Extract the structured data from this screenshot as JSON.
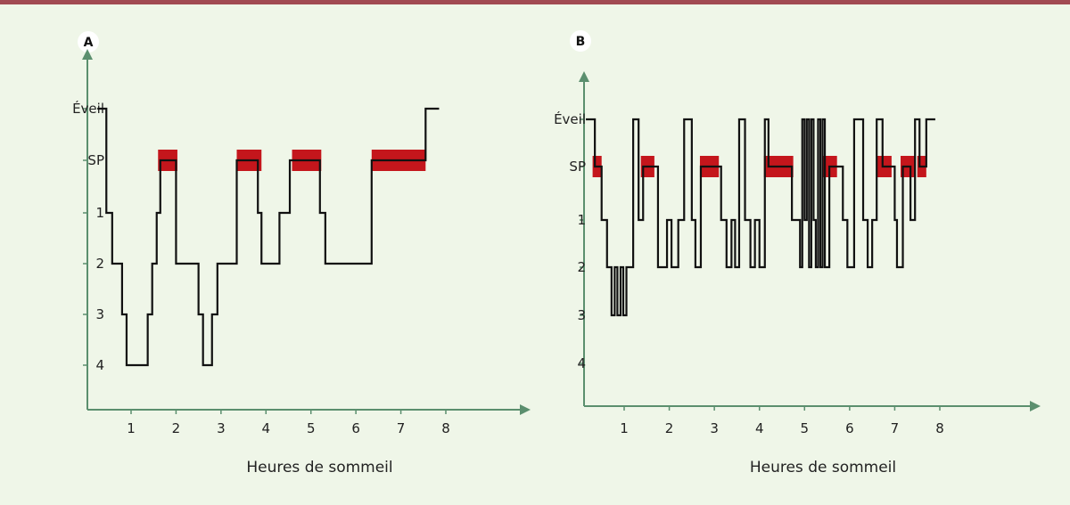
{
  "colors": {
    "background": "#eff6e8",
    "top_rule": "#a14a52",
    "axis": "#5b8f6e",
    "hypnogram": "#111111",
    "rem_bar": "#c4161c"
  },
  "chart_data": [
    {
      "type": "line",
      "panel": "A",
      "xlabel": "Heures de sommeil",
      "ylabel": "",
      "x_ticks": [
        "1",
        "2",
        "3",
        "4",
        "5",
        "6",
        "7",
        "8"
      ],
      "y_ticks": [
        "Éveil",
        "SP",
        "1",
        "2",
        "3",
        "4"
      ],
      "xlim": [
        0,
        10.4
      ],
      "grid": false,
      "stage_steps": [
        {
          "t": 0.25,
          "stage": "Éveil"
        },
        {
          "t": 0.45,
          "stage": "1"
        },
        {
          "t": 0.58,
          "stage": "2"
        },
        {
          "t": 0.8,
          "stage": "3"
        },
        {
          "t": 0.9,
          "stage": "4"
        },
        {
          "t": 1.37,
          "stage": "3"
        },
        {
          "t": 1.47,
          "stage": "2"
        },
        {
          "t": 1.57,
          "stage": "1"
        },
        {
          "t": 1.65,
          "stage": "SP"
        },
        {
          "t": 2.0,
          "stage": "2"
        },
        {
          "t": 2.5,
          "stage": "3"
        },
        {
          "t": 2.6,
          "stage": "4"
        },
        {
          "t": 2.8,
          "stage": "3"
        },
        {
          "t": 2.92,
          "stage": "2"
        },
        {
          "t": 3.35,
          "stage": "SP"
        },
        {
          "t": 3.82,
          "stage": "1"
        },
        {
          "t": 3.9,
          "stage": "2"
        },
        {
          "t": 4.3,
          "stage": "1"
        },
        {
          "t": 4.53,
          "stage": "SP"
        },
        {
          "t": 5.2,
          "stage": "1"
        },
        {
          "t": 5.32,
          "stage": "2"
        },
        {
          "t": 6.35,
          "stage": "SP"
        },
        {
          "t": 7.55,
          "stage": "Éveil"
        },
        {
          "t": 7.85,
          "stage": "Éveil"
        }
      ],
      "rem_periods": [
        [
          1.6,
          2.03
        ],
        [
          3.35,
          3.9
        ],
        [
          4.58,
          5.23
        ],
        [
          6.35,
          7.55
        ]
      ]
    },
    {
      "type": "line",
      "panel": "B",
      "xlabel": "Heures de sommeil",
      "ylabel": "",
      "x_ticks": [
        "1",
        "2",
        "3",
        "4",
        "5",
        "6",
        "7",
        "8"
      ],
      "y_ticks": [
        "Éveil",
        "SP",
        "1",
        "2",
        "3",
        "4"
      ],
      "xlim": [
        0,
        10.4
      ],
      "grid": false,
      "stage_steps": [
        {
          "t": 0.15,
          "stage": "Éveil"
        },
        {
          "t": 0.35,
          "stage": "SP"
        },
        {
          "t": 0.5,
          "stage": "1"
        },
        {
          "t": 0.62,
          "stage": "2"
        },
        {
          "t": 0.72,
          "stage": "3"
        },
        {
          "t": 0.79,
          "stage": "2"
        },
        {
          "t": 0.85,
          "stage": "3"
        },
        {
          "t": 0.92,
          "stage": "2"
        },
        {
          "t": 0.98,
          "stage": "3"
        },
        {
          "t": 1.05,
          "stage": "2"
        },
        {
          "t": 1.2,
          "stage": "Éveil"
        },
        {
          "t": 1.32,
          "stage": "1"
        },
        {
          "t": 1.42,
          "stage": "SP"
        },
        {
          "t": 1.75,
          "stage": "2"
        },
        {
          "t": 1.95,
          "stage": "1"
        },
        {
          "t": 2.05,
          "stage": "2"
        },
        {
          "t": 2.2,
          "stage": "1"
        },
        {
          "t": 2.33,
          "stage": "Éveil"
        },
        {
          "t": 2.5,
          "stage": "1"
        },
        {
          "t": 2.58,
          "stage": "2"
        },
        {
          "t": 2.7,
          "stage": "SP"
        },
        {
          "t": 3.15,
          "stage": "1"
        },
        {
          "t": 3.27,
          "stage": "2"
        },
        {
          "t": 3.38,
          "stage": "1"
        },
        {
          "t": 3.46,
          "stage": "2"
        },
        {
          "t": 3.55,
          "stage": "Éveil"
        },
        {
          "t": 3.68,
          "stage": "1"
        },
        {
          "t": 3.8,
          "stage": "2"
        },
        {
          "t": 3.9,
          "stage": "1"
        },
        {
          "t": 4.0,
          "stage": "2"
        },
        {
          "t": 4.12,
          "stage": "Éveil"
        },
        {
          "t": 4.2,
          "stage": "SP"
        },
        {
          "t": 4.72,
          "stage": "1"
        },
        {
          "t": 4.9,
          "stage": "2"
        },
        {
          "t": 4.95,
          "stage": "Éveil"
        },
        {
          "t": 5.0,
          "stage": "1"
        },
        {
          "t": 5.05,
          "stage": "Éveil"
        },
        {
          "t": 5.1,
          "stage": "2"
        },
        {
          "t": 5.15,
          "stage": "Éveil"
        },
        {
          "t": 5.2,
          "stage": "1"
        },
        {
          "t": 5.25,
          "stage": "2"
        },
        {
          "t": 5.3,
          "stage": "Éveil"
        },
        {
          "t": 5.35,
          "stage": "2"
        },
        {
          "t": 5.4,
          "stage": "Éveil"
        },
        {
          "t": 5.45,
          "stage": "2"
        },
        {
          "t": 5.55,
          "stage": "SP"
        },
        {
          "t": 5.85,
          "stage": "1"
        },
        {
          "t": 5.95,
          "stage": "2"
        },
        {
          "t": 6.1,
          "stage": "Éveil"
        },
        {
          "t": 6.3,
          "stage": "1"
        },
        {
          "t": 6.4,
          "stage": "2"
        },
        {
          "t": 6.5,
          "stage": "1"
        },
        {
          "t": 6.6,
          "stage": "Éveil"
        },
        {
          "t": 6.73,
          "stage": "SP"
        },
        {
          "t": 7.0,
          "stage": "1"
        },
        {
          "t": 7.05,
          "stage": "2"
        },
        {
          "t": 7.18,
          "stage": "SP"
        },
        {
          "t": 7.35,
          "stage": "1"
        },
        {
          "t": 7.45,
          "stage": "Éveil"
        },
        {
          "t": 7.55,
          "stage": "SP"
        },
        {
          "t": 7.7,
          "stage": "Éveil"
        },
        {
          "t": 7.9,
          "stage": "Éveil"
        }
      ],
      "rem_periods": [
        [
          0.3,
          0.5
        ],
        [
          1.37,
          1.67
        ],
        [
          2.68,
          3.1
        ],
        [
          4.1,
          4.75
        ],
        [
          5.4,
          5.72
        ],
        [
          6.6,
          6.93
        ],
        [
          7.13,
          7.45
        ],
        [
          7.5,
          7.7
        ]
      ]
    }
  ]
}
